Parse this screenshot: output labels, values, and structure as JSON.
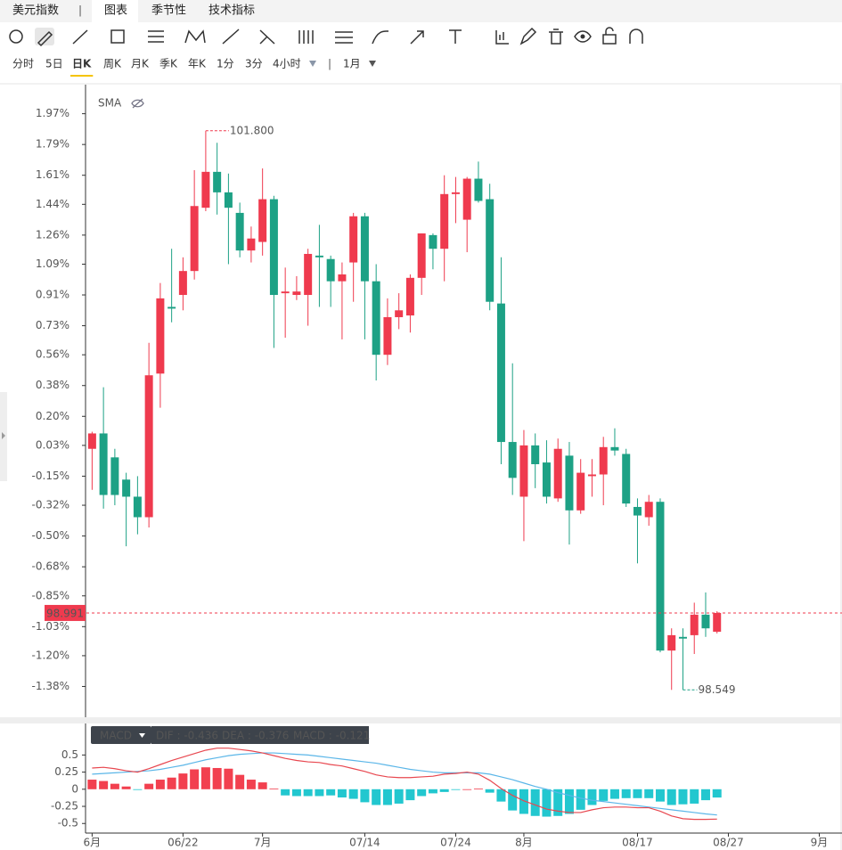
{
  "tabs": [
    "美元指数",
    "图表",
    "季节性",
    "技术指标"
  ],
  "active_tab": 1,
  "periods": [
    "分时",
    "5日",
    "日K",
    "周K",
    "月K",
    "季K",
    "年K",
    "1分",
    "3分",
    "4小时"
  ],
  "active_period": 2,
  "range": "1月",
  "chart_data": [
    {
      "type": "candlestick",
      "indicator": "SMA",
      "up_color": "#ef3a4e",
      "down_color": "#1da185",
      "xlim": [
        -0.5,
        66
      ],
      "ylim": [
        -1.56,
        2.14
      ],
      "yticks": [
        {
          "value": 1.97,
          "label": "1.97%"
        },
        {
          "value": 1.79,
          "label": "1.79%"
        },
        {
          "value": 1.61,
          "label": "1.61%"
        },
        {
          "value": 1.44,
          "label": "1.44%"
        },
        {
          "value": 1.26,
          "label": "1.26%"
        },
        {
          "value": 1.09,
          "label": "1.09%"
        },
        {
          "value": 0.91,
          "label": "0.91%"
        },
        {
          "value": 0.73,
          "label": "0.73%"
        },
        {
          "value": 0.56,
          "label": "0.56%"
        },
        {
          "value": 0.38,
          "label": "0.38%"
        },
        {
          "value": 0.2,
          "label": "0.20%"
        },
        {
          "value": 0.03,
          "label": "0.03%"
        },
        {
          "value": -0.15,
          "label": "-0.15%"
        },
        {
          "value": -0.32,
          "label": "-0.32%"
        },
        {
          "value": -0.5,
          "label": "-0.50%"
        },
        {
          "value": -0.68,
          "label": "-0.68%"
        },
        {
          "value": -0.85,
          "label": "-0.85%"
        },
        {
          "value": -1.03,
          "label": "-1.03%"
        },
        {
          "value": -1.2,
          "label": "-1.20%"
        },
        {
          "value": -1.38,
          "label": "-1.38%"
        }
      ],
      "open": [
        0.01,
        0.1,
        -0.04,
        -0.17,
        -0.27,
        -0.39,
        0.45,
        0.84,
        0.91,
        1.05,
        1.42,
        1.63,
        1.51,
        1.39,
        1.17,
        1.22,
        1.47,
        0.92,
        0.91,
        0.91,
        1.14,
        1.12,
        0.99,
        1.1,
        1.37,
        0.99,
        0.56,
        0.78,
        0.79,
        1.01,
        1.26,
        1.18,
        1.5,
        1.35,
        1.59,
        1.47,
        0.86,
        0.05,
        -0.27,
        0.03,
        -0.07,
        -0.28,
        -0.03,
        -0.35,
        -0.15,
        -0.14,
        0.02,
        -0.02,
        -0.33,
        -0.39,
        -0.3,
        -1.17,
        -1.09,
        -1.08,
        -0.96,
        -1.06
      ],
      "close": [
        0.1,
        -0.26,
        -0.26,
        -0.27,
        -0.39,
        0.44,
        0.89,
        0.83,
        1.05,
        1.43,
        1.63,
        1.51,
        1.42,
        1.17,
        1.24,
        1.47,
        0.91,
        0.93,
        0.93,
        1.15,
        1.13,
        0.99,
        1.03,
        1.37,
        0.99,
        0.56,
        0.78,
        0.82,
        1.01,
        1.27,
        1.18,
        1.5,
        1.51,
        1.59,
        1.46,
        0.87,
        0.05,
        -0.16,
        0.03,
        -0.08,
        -0.27,
        0.01,
        -0.35,
        -0.13,
        -0.14,
        0.02,
        0.0,
        -0.31,
        -0.38,
        -0.3,
        -1.17,
        -1.08,
        -1.1,
        -0.96,
        -1.04,
        -0.95
      ],
      "high": [
        0.11,
        0.37,
        0.01,
        -0.13,
        -0.15,
        0.63,
        0.98,
        1.18,
        1.13,
        1.64,
        1.87,
        1.8,
        1.62,
        1.45,
        1.31,
        1.65,
        1.49,
        1.07,
        1.02,
        1.18,
        1.32,
        1.14,
        1.1,
        1.39,
        1.39,
        1.09,
        0.89,
        0.92,
        1.03,
        1.27,
        1.27,
        1.61,
        1.6,
        1.6,
        1.69,
        1.56,
        1.13,
        0.51,
        0.12,
        0.1,
        0.06,
        0.07,
        0.05,
        -0.05,
        -0.05,
        0.08,
        0.13,
        0.01,
        -0.28,
        -0.26,
        -0.28,
        -1.04,
        -1.04,
        -0.89,
        -0.83,
        -0.94
      ],
      "low": [
        -0.23,
        -0.34,
        -0.32,
        -0.56,
        -0.49,
        -0.45,
        0.25,
        0.75,
        0.82,
        1.0,
        1.4,
        1.38,
        1.09,
        1.13,
        1.1,
        1.14,
        0.6,
        0.66,
        0.88,
        0.73,
        0.84,
        0.84,
        0.65,
        0.87,
        0.65,
        0.41,
        0.5,
        0.71,
        0.69,
        0.91,
        1.06,
        0.99,
        1.33,
        1.16,
        1.45,
        0.82,
        -0.08,
        -0.26,
        -0.53,
        -0.22,
        -0.31,
        -0.3,
        -0.55,
        -0.37,
        -0.27,
        -0.32,
        -0.03,
        -0.33,
        -0.66,
        -0.44,
        -1.18,
        -1.4,
        -1.4,
        -1.19,
        -1.09,
        -1.07
      ],
      "high_label": "101.800",
      "low_label": "98.549",
      "last_label": "98.991"
    },
    {
      "type": "macd",
      "indicator": "MACD",
      "readout": [
        "DIF : -0.436",
        "DEA : -0.376",
        "MACD : -0.121"
      ],
      "xlim": [
        -0.5,
        66
      ],
      "ylim": [
        -0.64,
        0.96
      ],
      "yticks": [
        0.5,
        0.25,
        0,
        -0.25,
        -0.5
      ],
      "xticks": [
        {
          "value": 0,
          "label": "6月"
        },
        {
          "value": 8,
          "label": "06/22"
        },
        {
          "value": 15,
          "label": "7月"
        },
        {
          "value": 24,
          "label": "07/14"
        },
        {
          "value": 32,
          "label": "07/24"
        },
        {
          "value": 38,
          "label": "8月"
        },
        {
          "value": 48,
          "label": "08/17"
        },
        {
          "value": 56,
          "label": "08/27"
        },
        {
          "value": 64,
          "label": "9月"
        }
      ],
      "dif_color": "#e8474f",
      "dea_color": "#5bb6e8",
      "hist_up_color": "#f2404f",
      "hist_down_color": "#22c7cf",
      "dif": [
        0.31,
        0.32,
        0.3,
        0.27,
        0.25,
        0.3,
        0.36,
        0.42,
        0.47,
        0.52,
        0.57,
        0.6,
        0.6,
        0.58,
        0.56,
        0.53,
        0.49,
        0.45,
        0.42,
        0.4,
        0.39,
        0.36,
        0.34,
        0.3,
        0.26,
        0.21,
        0.18,
        0.17,
        0.17,
        0.18,
        0.19,
        0.22,
        0.23,
        0.25,
        0.22,
        0.13,
        0.01,
        -0.09,
        -0.17,
        -0.23,
        -0.29,
        -0.32,
        -0.34,
        -0.34,
        -0.3,
        -0.27,
        -0.26,
        -0.26,
        -0.27,
        -0.27,
        -0.32,
        -0.39,
        -0.43,
        -0.44,
        -0.44,
        -0.436
      ],
      "dea": [
        0.22,
        0.23,
        0.24,
        0.25,
        0.26,
        0.27,
        0.29,
        0.32,
        0.35,
        0.39,
        0.43,
        0.46,
        0.49,
        0.51,
        0.52,
        0.53,
        0.53,
        0.52,
        0.51,
        0.5,
        0.48,
        0.46,
        0.44,
        0.42,
        0.4,
        0.38,
        0.35,
        0.32,
        0.29,
        0.27,
        0.25,
        0.24,
        0.24,
        0.24,
        0.24,
        0.22,
        0.18,
        0.14,
        0.09,
        0.04,
        0.0,
        -0.05,
        -0.09,
        -0.13,
        -0.16,
        -0.18,
        -0.2,
        -0.22,
        -0.24,
        -0.26,
        -0.28,
        -0.3,
        -0.32,
        -0.34,
        -0.36,
        -0.376
      ],
      "hist": [
        0.14,
        0.12,
        0.08,
        0.04,
        -0.01,
        0.08,
        0.14,
        0.17,
        0.23,
        0.29,
        0.32,
        0.31,
        0.3,
        0.21,
        0.14,
        0.1,
        0.01,
        -0.09,
        -0.1,
        -0.1,
        -0.1,
        -0.09,
        -0.12,
        -0.14,
        -0.19,
        -0.23,
        -0.23,
        -0.21,
        -0.16,
        -0.1,
        -0.06,
        -0.04,
        -0.01,
        0.0,
        0.01,
        -0.05,
        -0.18,
        -0.31,
        -0.36,
        -0.39,
        -0.4,
        -0.39,
        -0.36,
        -0.3,
        -0.23,
        -0.17,
        -0.14,
        -0.13,
        -0.13,
        -0.13,
        -0.18,
        -0.23,
        -0.22,
        -0.21,
        -0.16,
        -0.121
      ]
    }
  ]
}
